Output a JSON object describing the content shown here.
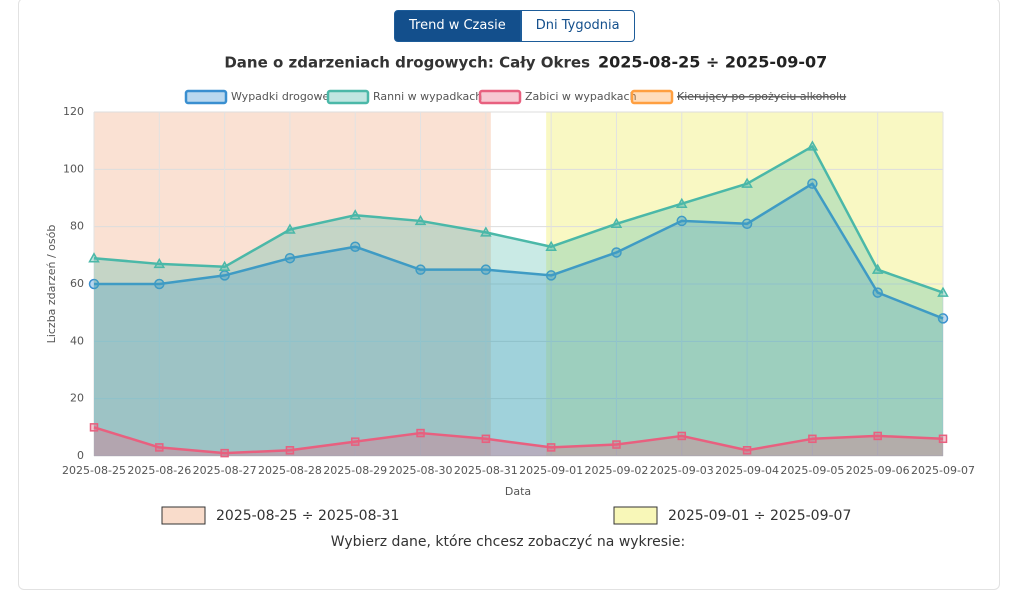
{
  "tabs": [
    "Trend w Czasie",
    "Dni Tygodnia"
  ],
  "chart_data": {
    "type": "line",
    "title": "Dane o zdarzeniach drogowych: Cały Okres",
    "title_range": "2025-08-25 ÷ 2025-09-07",
    "x_label": "Data",
    "y_label": "Liczba zdarzeń / osób",
    "categories": [
      "2025-08-25",
      "2025-08-26",
      "2025-08-27",
      "2025-08-28",
      "2025-08-29",
      "2025-08-30",
      "2025-08-31",
      "2025-09-01",
      "2025-09-02",
      "2025-09-03",
      "2025-09-04",
      "2025-09-05",
      "2025-09-06",
      "2025-09-07"
    ],
    "series": [
      {
        "name": "Wypadki drogowe",
        "color": "#3a8fd0",
        "marker": "circle",
        "values": [
          60,
          60,
          63,
          69,
          73,
          65,
          65,
          63,
          71,
          82,
          81,
          95,
          57,
          48
        ]
      },
      {
        "name": "Ranni w wypadkach",
        "color": "#4bb8a8",
        "marker": "triangle",
        "values": [
          69,
          67,
          66,
          79,
          84,
          82,
          78,
          73,
          81,
          88,
          95,
          108,
          65,
          57
        ]
      },
      {
        "name": "Zabici w wypadkach",
        "color": "#e8607f",
        "marker": "square",
        "values": [
          10,
          3,
          1,
          2,
          5,
          8,
          6,
          3,
          4,
          7,
          2,
          6,
          7,
          6
        ]
      },
      {
        "name": "Kierujący po spożyciu alkoholu",
        "color": "#ff9f40",
        "hidden": true
      }
    ],
    "bands": [
      {
        "label": "2025-08-25 ÷ 2025-08-31",
        "start": 0,
        "end": 6,
        "color": "#f9dccb"
      },
      {
        "label": "2025-09-01 ÷ 2025-09-07",
        "start": 7,
        "end": 13,
        "color": "#f8f7b8"
      }
    ],
    "ylim": [
      0,
      120
    ],
    "yticks": [
      0,
      20,
      40,
      60,
      80,
      100,
      120
    ],
    "grid": true
  },
  "prompt": "Wybierz dane, które chcesz zobaczyć na wykresie:"
}
